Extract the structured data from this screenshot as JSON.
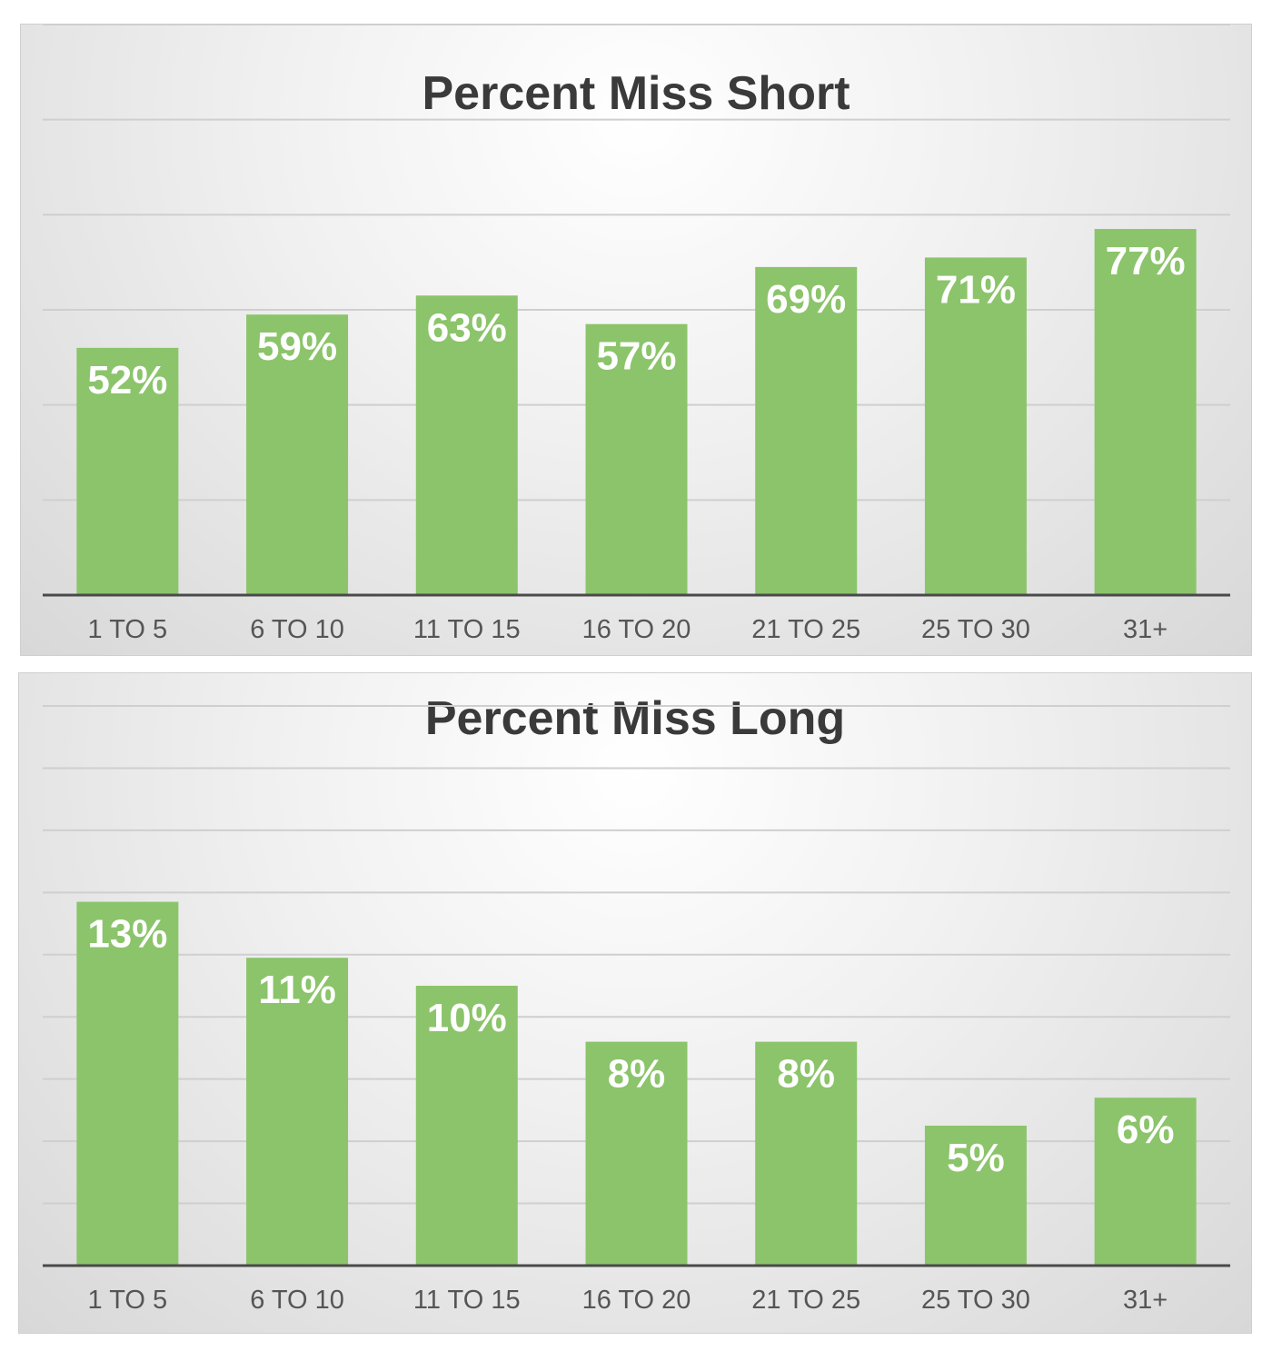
{
  "chart_data": [
    {
      "type": "bar",
      "title": "Percent Miss Short",
      "categories": [
        "1 TO 5",
        "6 TO 10",
        "11 TO 15",
        "16 TO 20",
        "21 TO 25",
        "25 TO 30",
        "31+"
      ],
      "values": [
        52,
        59,
        63,
        57,
        69,
        71,
        77
      ],
      "data_labels": [
        "52%",
        "59%",
        "63%",
        "57%",
        "69%",
        "71%",
        "77%"
      ],
      "ylim": [
        0,
        120
      ],
      "grid": true,
      "legend": "none",
      "bar_color": "#8bc46a"
    },
    {
      "type": "bar",
      "title": "Percent Miss Long",
      "categories": [
        "1 TO 5",
        "6 TO 10",
        "11 TO 15",
        "16 TO 20",
        "21 TO 25",
        "25 TO 30",
        "31+"
      ],
      "values": [
        13,
        11,
        10,
        8,
        8,
        5,
        6
      ],
      "data_labels": [
        "13%",
        "11%",
        "10%",
        "8%",
        "8%",
        "5%",
        "6%"
      ],
      "ylim": [
        0,
        20
      ],
      "grid": true,
      "legend": "none",
      "bar_color": "#8bc46a"
    }
  ]
}
